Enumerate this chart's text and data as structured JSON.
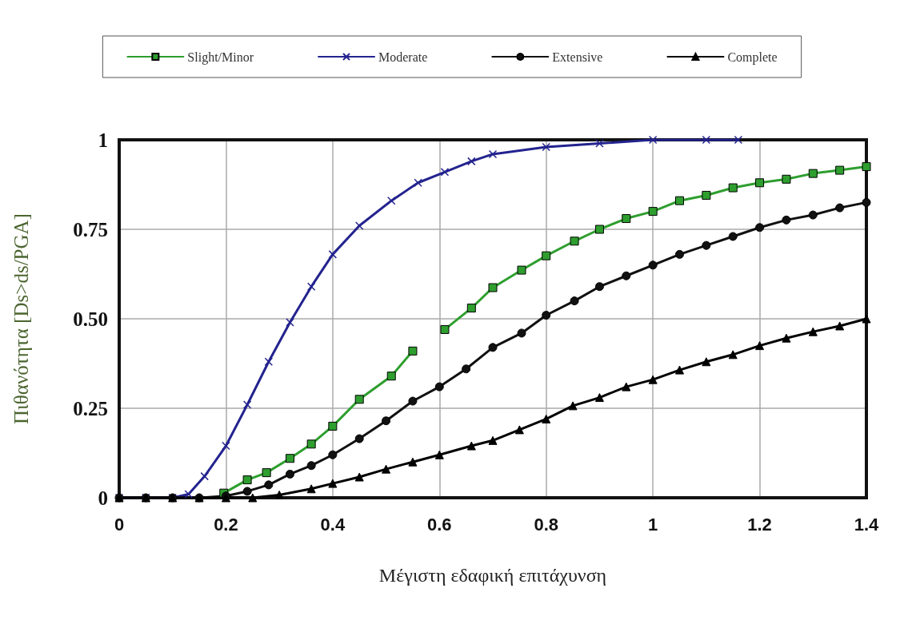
{
  "chart_data": {
    "type": "line",
    "xlabel": "Μέγιστη εδαφική επιτάχυνση",
    "ylabel": "Πιθανότητα [Ds>ds/PGA]",
    "xlim": [
      0,
      1.4
    ],
    "xticks": [
      0,
      0.2,
      0.4,
      0.6,
      0.8,
      1,
      1.2,
      1.4
    ],
    "ylim": [
      0,
      1
    ],
    "yticks": [
      0,
      0.25,
      {
        "value": 0.5,
        "label": "0.50"
      },
      0.75,
      1
    ],
    "grid": true,
    "legend": "top",
    "line_style": "solid",
    "series": [
      {
        "name": "Slight/Minor",
        "color": "#2e9e2e",
        "marker": "square",
        "x": [
          0.196,
          0.24,
          0.276,
          0.32,
          0.36,
          0.4,
          0.45,
          0.51,
          0.55,
          0.58,
          0.61,
          0.66,
          0.7,
          0.754,
          0.8,
          0.853,
          0.9,
          0.95,
          1.0,
          1.05,
          1.1,
          1.15,
          1.2,
          1.25,
          1.3,
          1.35,
          1.4
        ],
        "values": [
          0.013,
          0.05,
          0.07,
          0.11,
          0.15,
          0.2,
          0.275,
          0.34,
          0.41,
          null,
          0.47,
          0.53,
          0.587,
          0.636,
          0.676,
          0.717,
          0.75,
          0.78,
          0.8,
          0.83,
          0.845,
          0.866,
          0.88,
          0.89,
          0.906,
          0.915,
          0.925
        ]
      },
      {
        "name": "Moderate",
        "color": "#23238f",
        "marker": "cross",
        "x": [
          0,
          0.05,
          0.1,
          0.13,
          0.16,
          0.2,
          0.24,
          0.28,
          0.32,
          0.36,
          0.4,
          0.45,
          0.51,
          0.56,
          0.61,
          0.66,
          0.7,
          0.8,
          0.9,
          1.0,
          1.1,
          1.16
        ],
        "values": [
          0,
          0,
          0,
          0.01,
          0.06,
          0.145,
          0.26,
          0.38,
          0.49,
          0.59,
          0.68,
          0.76,
          0.83,
          0.88,
          0.91,
          0.94,
          0.96,
          0.98,
          0.99,
          1,
          1,
          1
        ]
      },
      {
        "name": "Extensive",
        "color": "#111111",
        "marker": "circle",
        "x": [
          0,
          0.05,
          0.1,
          0.15,
          0.2,
          0.24,
          0.28,
          0.32,
          0.36,
          0.4,
          0.45,
          0.5,
          0.55,
          0.6,
          0.65,
          0.7,
          0.754,
          0.8,
          0.853,
          0.9,
          0.95,
          1.0,
          1.05,
          1.1,
          1.15,
          1.2,
          1.25,
          1.3,
          1.35,
          1.4
        ],
        "values": [
          0,
          0,
          0,
          0,
          0.005,
          0.018,
          0.036,
          0.066,
          0.09,
          0.12,
          0.165,
          0.215,
          0.27,
          0.31,
          0.36,
          0.42,
          0.46,
          0.51,
          0.55,
          0.59,
          0.62,
          0.65,
          0.68,
          0.705,
          0.73,
          0.755,
          0.776,
          0.79,
          0.81,
          0.825
        ]
      },
      {
        "name": "Complete",
        "color": "#000000",
        "marker": "triangle",
        "x": [
          0,
          0.05,
          0.1,
          0.15,
          0.2,
          0.25,
          0.3,
          0.36,
          0.4,
          0.45,
          0.5,
          0.55,
          0.6,
          0.66,
          0.7,
          0.75,
          0.8,
          0.85,
          0.9,
          0.95,
          1.0,
          1.05,
          1.1,
          1.15,
          1.2,
          1.25,
          1.3,
          1.35,
          1.4
        ],
        "values": [
          0,
          0,
          0,
          0,
          0,
          0,
          0.008,
          0.025,
          0.04,
          0.058,
          0.08,
          0.1,
          0.12,
          0.145,
          0.16,
          0.19,
          0.22,
          0.257,
          0.28,
          0.31,
          0.33,
          0.357,
          0.38,
          0.4,
          0.425,
          0.446,
          0.464,
          0.48,
          0.5
        ]
      }
    ]
  }
}
